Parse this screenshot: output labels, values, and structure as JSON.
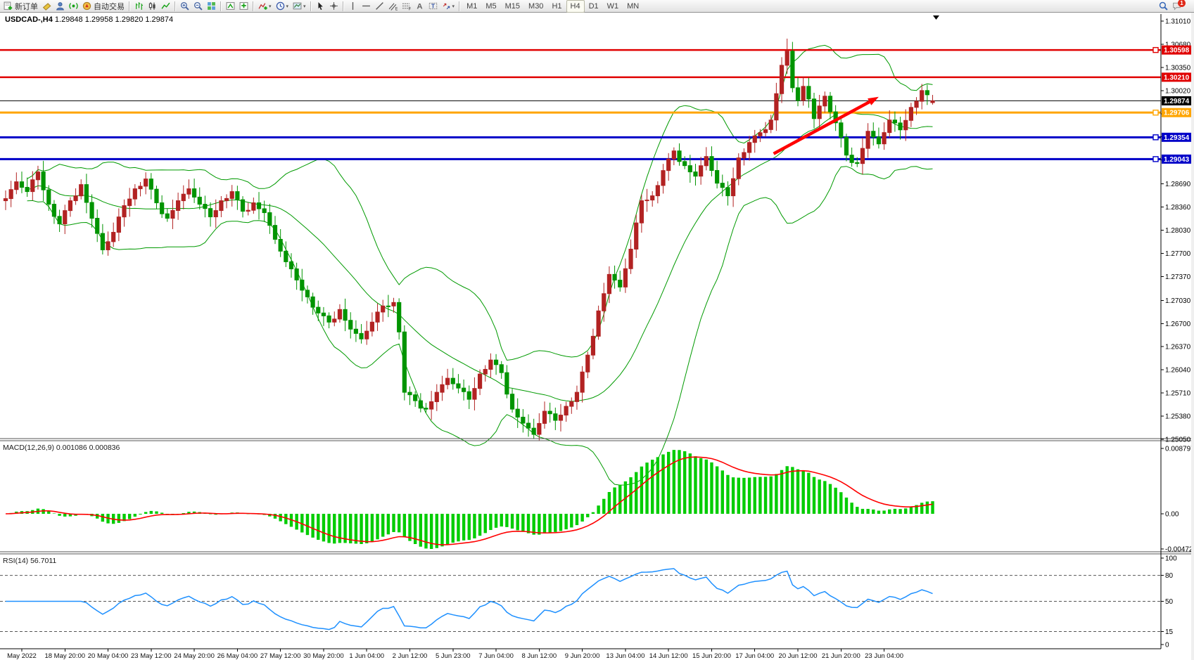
{
  "toolbar": {
    "groups": [
      {
        "name": "trade-group",
        "items": [
          {
            "name": "new-order-button",
            "icon": "new-order",
            "label": "新订单"
          },
          {
            "name": "ticket-button",
            "icon": "ticket",
            "label": ""
          },
          {
            "name": "profile-button",
            "icon": "profile",
            "label": ""
          },
          {
            "name": "signal-button",
            "icon": "signal",
            "label": ""
          },
          {
            "name": "auto-trading-button",
            "icon": "autotrade",
            "label": "自动交易"
          }
        ]
      },
      {
        "name": "chart-type-group",
        "items": [
          {
            "name": "bar-chart-button",
            "icon": "bar-chart",
            "label": ""
          },
          {
            "name": "candlestick-chart-button",
            "icon": "candle-chart",
            "label": ""
          },
          {
            "name": "line-chart-button",
            "icon": "line-chart",
            "label": ""
          }
        ]
      },
      {
        "name": "zoom-group",
        "items": [
          {
            "name": "zoom-in-button",
            "icon": "zoom-in",
            "label": ""
          },
          {
            "name": "zoom-out-button",
            "icon": "zoom-out",
            "label": ""
          },
          {
            "name": "tile-windows-button",
            "icon": "tile-windows",
            "label": ""
          }
        ]
      },
      {
        "name": "arrange-group",
        "items": [
          {
            "name": "auto-arrange-button",
            "icon": "arrange-a",
            "label": ""
          },
          {
            "name": "cascade-button",
            "icon": "arrange-b",
            "label": ""
          }
        ]
      },
      {
        "name": "insert-group",
        "items": [
          {
            "name": "indicators-button",
            "icon": "indicators",
            "label": "",
            "dropdown": true
          },
          {
            "name": "periods-button",
            "icon": "periods-clock",
            "label": "",
            "dropdown": true
          },
          {
            "name": "templates-button",
            "icon": "templates",
            "label": "",
            "dropdown": true
          }
        ]
      },
      {
        "name": "pointer-group",
        "items": [
          {
            "name": "cursor-button",
            "icon": "cursor",
            "label": ""
          },
          {
            "name": "crosshair-button",
            "icon": "crosshair",
            "label": ""
          }
        ]
      },
      {
        "name": "objects-group",
        "items": [
          {
            "name": "vertical-line-button",
            "icon": "vline",
            "label": ""
          },
          {
            "name": "horizontal-line-button",
            "icon": "hline",
            "label": ""
          },
          {
            "name": "trendline-button",
            "icon": "trendline",
            "label": ""
          },
          {
            "name": "equidistant-channel-button",
            "icon": "channel",
            "label": ""
          },
          {
            "name": "fibonacci-button",
            "icon": "fibonacci",
            "label": ""
          },
          {
            "name": "text-button",
            "icon": "text",
            "label": ""
          },
          {
            "name": "text-label-button",
            "icon": "text-label",
            "label": ""
          },
          {
            "name": "arrows-button",
            "icon": "arrows",
            "label": "",
            "dropdown": true
          }
        ]
      }
    ],
    "timeframes": [
      {
        "name": "timeframe-m1",
        "label": "M1",
        "active": false
      },
      {
        "name": "timeframe-m5",
        "label": "M5",
        "active": false
      },
      {
        "name": "timeframe-m15",
        "label": "M15",
        "active": false
      },
      {
        "name": "timeframe-m30",
        "label": "M30",
        "active": false
      },
      {
        "name": "timeframe-h1",
        "label": "H1",
        "active": false
      },
      {
        "name": "timeframe-h4",
        "label": "H4",
        "active": true
      },
      {
        "name": "timeframe-d1",
        "label": "D1",
        "active": false
      },
      {
        "name": "timeframe-w1",
        "label": "W1",
        "active": false
      },
      {
        "name": "timeframe-mn",
        "label": "MN",
        "active": false
      }
    ],
    "right": {
      "search_name": "search-button",
      "notifications_name": "notifications-button",
      "badge_count": "1"
    }
  },
  "chart": {
    "title_symbol": "USDCAD-,H4",
    "title_ohlc": "1.29848 1.29958 1.29820 1.29874",
    "macd_label": "MACD(12,26,9) 0.001086 0.000836",
    "rsi_label": "RSI(14) 56.7011"
  },
  "chart_data": [
    {
      "type": "candlestick",
      "title": "USDCAD-,H4",
      "symbol": "USDCAD-",
      "timeframe": "H4",
      "current_bar": {
        "open": 1.29848,
        "high": 1.29958,
        "low": 1.2982,
        "close": 1.29874
      },
      "ylim": [
        1.2505,
        1.3101
      ],
      "y_ticks": [
        1.3101,
        1.3068,
        1.3035,
        1.3002,
        1.2969,
        1.2936,
        1.2903,
        1.2869,
        1.2836,
        1.2803,
        1.277,
        1.2737,
        1.2703,
        1.267,
        1.2637,
        1.2604,
        1.2571,
        1.2538,
        1.2505
      ],
      "x_labels": [
        "May 2022",
        "18 May 20:00",
        "20 May 04:00",
        "23 May 12:00",
        "24 May 20:00",
        "26 May 04:00",
        "27 May 12:00",
        "30 May 20:00",
        "1 Jun 04:00",
        "2 Jun 12:00",
        "5 Jun 23:00",
        "7 Jun 04:00",
        "8 Jun 12:00",
        "9 Jun 20:00",
        "13 Jun 04:00",
        "14 Jun 12:00",
        "15 Jun 20:00",
        "17 Jun 04:00",
        "20 Jun 12:00",
        "21 Jun 20:00",
        "23 Jun 04:00"
      ],
      "x_label_first_bar": 3,
      "x_label_step": 8,
      "bar_count": 173,
      "first_open": 1.2845,
      "close_anchors": [
        [
          0,
          1.2848
        ],
        [
          2,
          1.2872
        ],
        [
          4,
          1.2858
        ],
        [
          6,
          1.2886
        ],
        [
          8,
          1.284
        ],
        [
          10,
          1.2812
        ],
        [
          12,
          1.2845
        ],
        [
          14,
          1.2868
        ],
        [
          16,
          1.282
        ],
        [
          18,
          1.2775
        ],
        [
          20,
          1.28
        ],
        [
          22,
          1.2838
        ],
        [
          24,
          1.2862
        ],
        [
          26,
          1.2876
        ],
        [
          28,
          1.2842
        ],
        [
          30,
          1.282
        ],
        [
          32,
          1.2845
        ],
        [
          34,
          1.2862
        ],
        [
          36,
          1.284
        ],
        [
          38,
          1.2822
        ],
        [
          40,
          1.2845
        ],
        [
          42,
          1.2858
        ],
        [
          44,
          1.283
        ],
        [
          46,
          1.2842
        ],
        [
          48,
          1.2828
        ],
        [
          50,
          1.279
        ],
        [
          52,
          1.2758
        ],
        [
          54,
          1.2732
        ],
        [
          56,
          1.2708
        ],
        [
          58,
          1.2685
        ],
        [
          60,
          1.2672
        ],
        [
          62,
          1.269
        ],
        [
          64,
          1.2662
        ],
        [
          66,
          1.2648
        ],
        [
          68,
          1.2672
        ],
        [
          70,
          1.2695
        ],
        [
          72,
          1.27
        ],
        [
          73,
          1.2658
        ],
        [
          74,
          1.2572
        ],
        [
          76,
          1.256
        ],
        [
          78,
          1.2548
        ],
        [
          80,
          1.2572
        ],
        [
          82,
          1.2592
        ],
        [
          84,
          1.2578
        ],
        [
          86,
          1.2562
        ],
        [
          88,
          1.2598
        ],
        [
          90,
          1.2618
        ],
        [
          92,
          1.26
        ],
        [
          94,
          1.2548
        ],
        [
          96,
          1.2528
        ],
        [
          98,
          1.2512
        ],
        [
          100,
          1.2545
        ],
        [
          102,
          1.2532
        ],
        [
          104,
          1.2552
        ],
        [
          106,
          1.2572
        ],
        [
          108,
          1.2625
        ],
        [
          110,
          1.2688
        ],
        [
          112,
          1.274
        ],
        [
          114,
          1.2722
        ],
        [
          116,
          1.2776
        ],
        [
          118,
          1.2845
        ],
        [
          120,
          1.2852
        ],
        [
          122,
          1.2888
        ],
        [
          124,
          1.2916
        ],
        [
          126,
          1.2895
        ],
        [
          128,
          1.288
        ],
        [
          130,
          1.2908
        ],
        [
          132,
          1.287
        ],
        [
          134,
          1.2852
        ],
        [
          136,
          1.2906
        ],
        [
          138,
          1.2928
        ],
        [
          140,
          1.2942
        ],
        [
          142,
          1.296
        ],
        [
          144,
          1.3038
        ],
        [
          145,
          1.3058
        ],
        [
          146,
          1.3006
        ],
        [
          147,
          1.2988
        ],
        [
          148,
          1.3008
        ],
        [
          149,
          1.299
        ],
        [
          150,
          1.2962
        ],
        [
          151,
          1.298
        ],
        [
          152,
          1.2994
        ],
        [
          154,
          1.2956
        ],
        [
          156,
          1.291
        ],
        [
          158,
          1.2898
        ],
        [
          160,
          1.2944
        ],
        [
          162,
          1.2926
        ],
        [
          164,
          1.296
        ],
        [
          166,
          1.2946
        ],
        [
          168,
          1.2978
        ],
        [
          170,
          1.3002
        ],
        [
          171,
          1.2996
        ],
        [
          172,
          1.29874
        ]
      ],
      "jitter": [
        0.34,
        0.72,
        0.15,
        0.58,
        0.91,
        0.27,
        0.63,
        0.08,
        0.81,
        0.42,
        0.66,
        0.2,
        0.88,
        0.37,
        0.52,
        0.76
      ],
      "overrides": {
        "145": {
          "h": 1.3076
        },
        "172": {
          "o": 1.29848,
          "h": 1.29958,
          "l": 1.2982,
          "c": 1.29874
        }
      },
      "colors": {
        "up": "#b22222",
        "down": "#009400",
        "bollinger": "#009a00"
      },
      "bollinger": {
        "period": 20,
        "deviation": 2
      },
      "hlines": [
        {
          "price": 1.30598,
          "color": "#e00000",
          "width": 2.5,
          "marker": true,
          "label": "1.30598"
        },
        {
          "price": 1.3021,
          "color": "#e00000",
          "width": 2.5,
          "marker": false,
          "label": "1.30210"
        },
        {
          "price": 1.29874,
          "color": "#000000",
          "width": 1,
          "marker": false,
          "label": "1.29874",
          "current": true
        },
        {
          "price": 1.29706,
          "color": "#ffa500",
          "width": 3,
          "marker": true,
          "label": "1.29706"
        },
        {
          "price": 1.29354,
          "color": "#0000c8",
          "width": 3,
          "marker": true,
          "label": "1.29354"
        },
        {
          "price": 1.29043,
          "color": "#0000c8",
          "width": 3,
          "marker": true,
          "label": "1.29043"
        }
      ],
      "trend_arrow": {
        "from_bar": 142.5,
        "from_price": 1.2912,
        "to_bar": 162,
        "to_price": 1.2993,
        "color": "#ff0000"
      }
    },
    {
      "type": "macd-histogram",
      "indicator": "MACD(12,26,9)",
      "fast": 12,
      "slow": 26,
      "signal_period": 9,
      "current_values": {
        "macd": 0.001086,
        "signal": 0.000836
      },
      "y_ticks": [
        {
          "v": 0.008797,
          "label": "0.008797"
        },
        {
          "v": 0,
          "label": "0.00"
        },
        {
          "v": -0.004725,
          "label": "-0.004725"
        }
      ],
      "peak_positive": 0.0086,
      "peak_negative": -0.004725,
      "colors": {
        "histogram": "#00cc00",
        "signal": "#ff0000"
      }
    },
    {
      "type": "line",
      "indicator": "RSI(14)",
      "period": 14,
      "current_value": 56.7011,
      "y_ticks": [
        {
          "v": 100,
          "label": "100"
        },
        {
          "v": 80,
          "label": "80"
        },
        {
          "v": 50,
          "label": "50"
        },
        {
          "v": 15,
          "label": "15"
        },
        {
          "v": 0,
          "label": "0"
        }
      ],
      "levels": [
        80,
        50,
        15
      ],
      "colors": {
        "line": "#1e90ff",
        "levels": "#555555"
      }
    }
  ]
}
